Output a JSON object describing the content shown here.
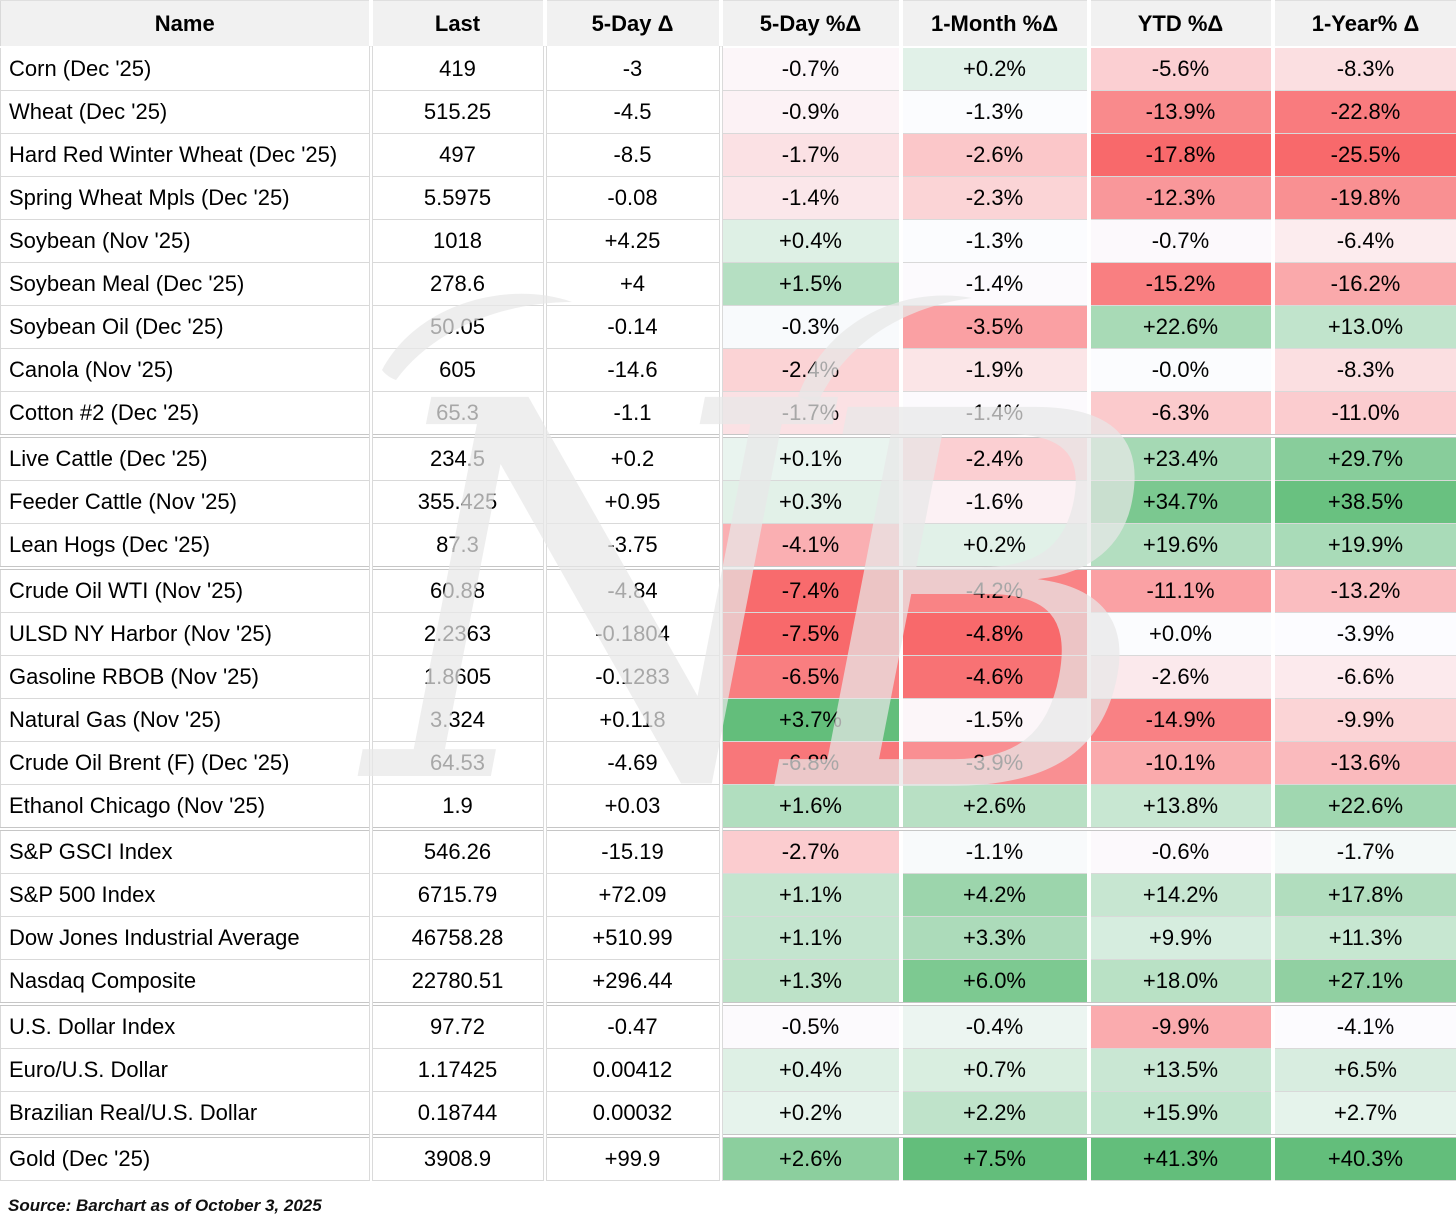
{
  "chart_data": {
    "type": "table",
    "title": "",
    "columns": [
      "Name",
      "Last",
      "5-Day Δ",
      "5-Day %Δ",
      "1-Month %Δ",
      "YTD %Δ",
      "1-Year% Δ"
    ],
    "rows": [
      {
        "name": "Corn (Dec '25)",
        "last": "419",
        "chg": "-3",
        "pct": [
          "-0.7%",
          "+0.2%",
          "-5.6%",
          "-8.3%"
        ],
        "group_start": false
      },
      {
        "name": "Wheat (Dec '25)",
        "last": "515.25",
        "chg": "-4.5",
        "pct": [
          "-0.9%",
          "-1.3%",
          "-13.9%",
          "-22.8%"
        ],
        "group_start": false
      },
      {
        "name": "Hard Red Winter Wheat (Dec '25)",
        "last": "497",
        "chg": "-8.5",
        "pct": [
          "-1.7%",
          "-2.6%",
          "-17.8%",
          "-25.5%"
        ],
        "group_start": false
      },
      {
        "name": "Spring Wheat Mpls (Dec '25)",
        "last": "5.5975",
        "chg": "-0.08",
        "pct": [
          "-1.4%",
          "-2.3%",
          "-12.3%",
          "-19.8%"
        ],
        "group_start": false
      },
      {
        "name": "Soybean (Nov '25)",
        "last": "1018",
        "chg": "+4.25",
        "pct": [
          "+0.4%",
          "-1.3%",
          "-0.7%",
          "-6.4%"
        ],
        "group_start": false
      },
      {
        "name": "Soybean Meal (Dec '25)",
        "last": "278.6",
        "chg": "+4",
        "pct": [
          "+1.5%",
          "-1.4%",
          "-15.2%",
          "-16.2%"
        ],
        "group_start": false
      },
      {
        "name": "Soybean Oil (Dec '25)",
        "last": "50.05",
        "chg": "-0.14",
        "pct": [
          "-0.3%",
          "-3.5%",
          "+22.6%",
          "+13.0%"
        ],
        "group_start": false
      },
      {
        "name": "Canola (Nov '25)",
        "last": "605",
        "chg": "-14.6",
        "pct": [
          "-2.4%",
          "-1.9%",
          "-0.0%",
          "-8.3%"
        ],
        "group_start": false
      },
      {
        "name": "Cotton #2 (Dec '25)",
        "last": "65.3",
        "chg": "-1.1",
        "pct": [
          "-1.7%",
          "-1.4%",
          "-6.3%",
          "-11.0%"
        ],
        "group_start": false
      },
      {
        "name": "Live Cattle (Dec '25)",
        "last": "234.5",
        "chg": "+0.2",
        "pct": [
          "+0.1%",
          "-2.4%",
          "+23.4%",
          "+29.7%"
        ],
        "group_start": true
      },
      {
        "name": "Feeder Cattle (Nov '25)",
        "last": "355.425",
        "chg": "+0.95",
        "pct": [
          "+0.3%",
          "-1.6%",
          "+34.7%",
          "+38.5%"
        ],
        "group_start": false
      },
      {
        "name": "Lean Hogs (Dec '25)",
        "last": "87.3",
        "chg": "-3.75",
        "pct": [
          "-4.1%",
          "+0.2%",
          "+19.6%",
          "+19.9%"
        ],
        "group_start": false
      },
      {
        "name": "Crude Oil WTI (Nov '25)",
        "last": "60.88",
        "chg": "-4.84",
        "pct": [
          "-7.4%",
          "-4.2%",
          "-11.1%",
          "-13.2%"
        ],
        "group_start": true
      },
      {
        "name": "ULSD NY Harbor (Nov '25)",
        "last": "2.2363",
        "chg": "-0.1804",
        "pct": [
          "-7.5%",
          "-4.8%",
          "+0.0%",
          "-3.9%"
        ],
        "group_start": false
      },
      {
        "name": "Gasoline RBOB (Nov '25)",
        "last": "1.8605",
        "chg": "-0.1283",
        "pct": [
          "-6.5%",
          "-4.6%",
          "-2.6%",
          "-6.6%"
        ],
        "group_start": false
      },
      {
        "name": "Natural Gas (Nov '25)",
        "last": "3.324",
        "chg": "+0.118",
        "pct": [
          "+3.7%",
          "-1.5%",
          "-14.9%",
          "-9.9%"
        ],
        "group_start": false
      },
      {
        "name": "Crude Oil Brent (F) (Dec '25)",
        "last": "64.53",
        "chg": "-4.69",
        "pct": [
          "-6.8%",
          "-3.9%",
          "-10.1%",
          "-13.6%"
        ],
        "group_start": false
      },
      {
        "name": "Ethanol Chicago (Nov '25)",
        "last": "1.9",
        "chg": "+0.03",
        "pct": [
          "+1.6%",
          "+2.6%",
          "+13.8%",
          "+22.6%"
        ],
        "group_start": false
      },
      {
        "name": "S&P GSCI Index",
        "last": "546.26",
        "chg": "-15.19",
        "pct": [
          "-2.7%",
          "-1.1%",
          "-0.6%",
          "-1.7%"
        ],
        "group_start": true
      },
      {
        "name": "S&P 500 Index",
        "last": "6715.79",
        "chg": "+72.09",
        "pct": [
          "+1.1%",
          "+4.2%",
          "+14.2%",
          "+17.8%"
        ],
        "group_start": false
      },
      {
        "name": "Dow Jones Industrial Average",
        "last": "46758.28",
        "chg": "+510.99",
        "pct": [
          "+1.1%",
          "+3.3%",
          "+9.9%",
          "+11.3%"
        ],
        "group_start": false
      },
      {
        "name": "Nasdaq Composite",
        "last": "22780.51",
        "chg": "+296.44",
        "pct": [
          "+1.3%",
          "+6.0%",
          "+18.0%",
          "+27.1%"
        ],
        "group_start": false
      },
      {
        "name": "U.S. Dollar Index",
        "last": "97.72",
        "chg": "-0.47",
        "pct": [
          "-0.5%",
          "-0.4%",
          "-9.9%",
          "-4.1%"
        ],
        "group_start": true
      },
      {
        "name": "Euro/U.S. Dollar",
        "last": "1.17425",
        "chg": "0.00412",
        "pct": [
          "+0.4%",
          "+0.7%",
          "+13.5%",
          "+6.5%"
        ],
        "group_start": false
      },
      {
        "name": "Brazilian Real/U.S. Dollar",
        "last": "0.18744",
        "chg": "0.00032",
        "pct": [
          "+0.2%",
          "+2.2%",
          "+15.9%",
          "+2.7%"
        ],
        "group_start": false
      },
      {
        "name": "Gold (Dec '25)",
        "last": "3908.9",
        "chg": "+99.9",
        "pct": [
          "+2.6%",
          "+7.5%",
          "+41.3%",
          "+40.3%"
        ],
        "group_start": true
      }
    ],
    "source": "Source: Barchart as of October 3, 2025",
    "legend_position": "none",
    "colorscale": {
      "negative": "#F8696B",
      "midpoint": "#FCFCFF",
      "positive": "#63BE7B",
      "mid_rule": "per-column median",
      "header_bg": "#F1F1F1",
      "grid_line": "#D9D9D9"
    }
  },
  "watermark": {
    "label": "NB"
  }
}
